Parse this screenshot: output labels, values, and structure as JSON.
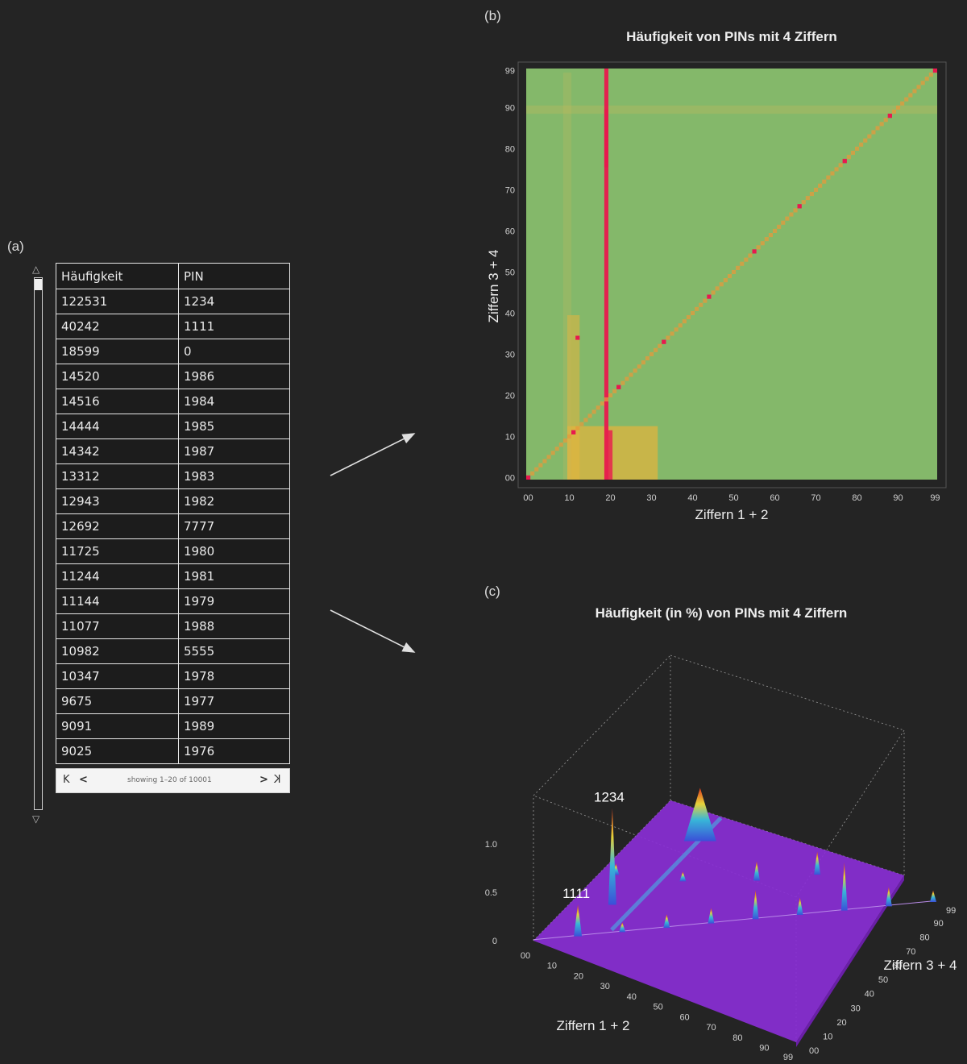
{
  "panels": {
    "a": "(a)",
    "b": "(b)",
    "c": "(c)"
  },
  "table": {
    "headers": [
      "Häufigkeit",
      "PIN"
    ],
    "rows": [
      [
        "122531",
        "1234"
      ],
      [
        "40242",
        "1111"
      ],
      [
        "18599",
        "0"
      ],
      [
        "14520",
        "1986"
      ],
      [
        "14516",
        "1984"
      ],
      [
        "14444",
        "1985"
      ],
      [
        "14342",
        "1987"
      ],
      [
        "13312",
        "1983"
      ],
      [
        "12943",
        "1982"
      ],
      [
        "12692",
        "7777"
      ],
      [
        "11725",
        "1980"
      ],
      [
        "11244",
        "1981"
      ],
      [
        "11144",
        "1979"
      ],
      [
        "11077",
        "1988"
      ],
      [
        "10982",
        "5555"
      ],
      [
        "10347",
        "1978"
      ],
      [
        "9675",
        "1977"
      ],
      [
        "9091",
        "1989"
      ],
      [
        "9025",
        "1976"
      ]
    ],
    "pager": {
      "text": "showing 1–20 of 10001",
      "first": "K",
      "prev": "<",
      "next": ">",
      "last": "K"
    }
  },
  "scroll_glyphs": {
    "up": "△",
    "down": "▽"
  },
  "colors": {
    "background": "#242424",
    "heatmap_base": "#84b86a",
    "heatmap_hot": "#e8194e",
    "heatmap_warm": "#e6b43c",
    "surface": "#8a2fd6"
  },
  "chart_data": [
    {
      "type": "heatmap",
      "title": "Häufigkeit von PINs mit 4 Ziffern",
      "xlabel": "Ziffern 1 + 2",
      "ylabel": "Ziffern 3 + 4",
      "xlim": [
        0,
        99
      ],
      "ylim": [
        0,
        99
      ],
      "x_ticks": [
        "00",
        "10",
        "20",
        "30",
        "40",
        "50",
        "60",
        "70",
        "80",
        "90",
        "99"
      ],
      "y_ticks": [
        "00",
        "10",
        "20",
        "30",
        "40",
        "50",
        "60",
        "70",
        "80",
        "90",
        "99"
      ],
      "hot_points": [
        [
          12,
          34
        ],
        [
          11,
          11
        ],
        [
          19,
          86
        ],
        [
          19,
          84
        ],
        [
          19,
          85
        ],
        [
          19,
          87
        ],
        [
          19,
          83
        ],
        [
          19,
          82
        ],
        [
          77,
          77
        ],
        [
          19,
          80
        ],
        [
          19,
          81
        ],
        [
          19,
          79
        ],
        [
          19,
          88
        ],
        [
          55,
          55
        ],
        [
          19,
          78
        ],
        [
          19,
          77
        ],
        [
          19,
          89
        ],
        [
          19,
          76
        ],
        [
          99,
          99
        ],
        [
          88,
          88
        ],
        [
          66,
          66
        ],
        [
          44,
          44
        ],
        [
          33,
          33
        ],
        [
          22,
          22
        ],
        [
          0,
          0
        ]
      ]
    },
    {
      "type": "surface3d",
      "title": "Häufigkeit (in %) von PINs mit 4 Ziffern",
      "xlabel": "Ziffern 1 + 2",
      "ylabel": "Ziffern 3 + 4",
      "zlim": [
        0,
        1.0
      ],
      "z_ticks": [
        "0",
        "0.5",
        "1.0"
      ],
      "x_ticks": [
        "00",
        "10",
        "20",
        "30",
        "40",
        "50",
        "60",
        "70",
        "80",
        "90",
        "99"
      ],
      "y_ticks": [
        "00",
        "10",
        "20",
        "30",
        "40",
        "50",
        "60",
        "70",
        "80",
        "90",
        "99"
      ],
      "peaks": [
        {
          "x": 12,
          "y": 34,
          "z": 1.0,
          "label": "1234"
        },
        {
          "x": 11,
          "y": 11,
          "z": 0.33,
          "label": "1111"
        },
        {
          "x": 19,
          "y": 86,
          "z": 0.12,
          "label": ""
        }
      ]
    }
  ]
}
